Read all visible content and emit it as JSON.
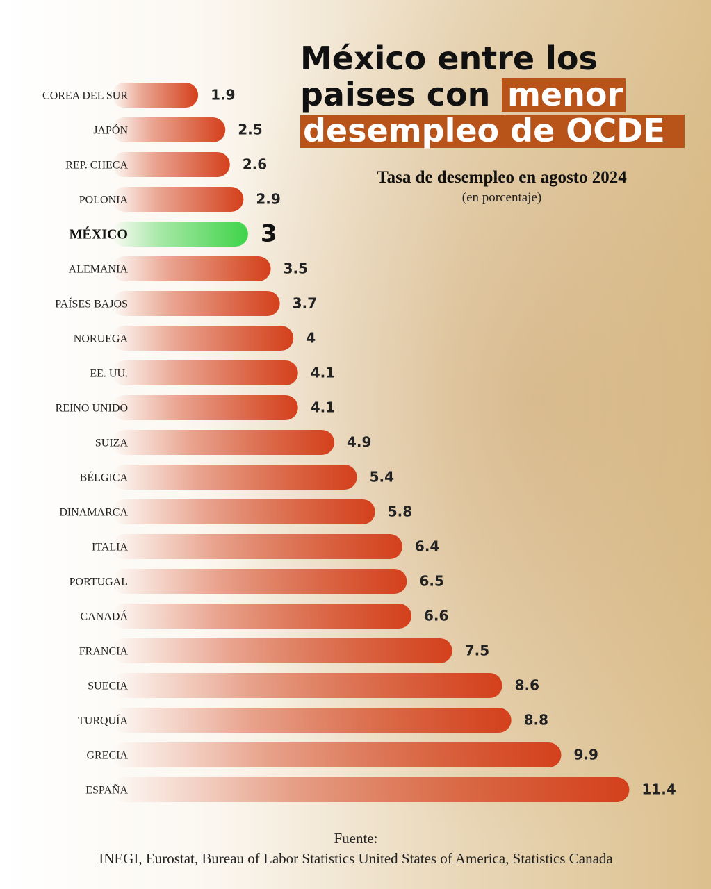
{
  "chart_data": {
    "type": "bar",
    "orientation": "horizontal",
    "title": [
      "México entre los",
      "paises con",
      "menor",
      "desempleo de OCDE"
    ],
    "subtitle": "Tasa de desempleo en agosto 2024",
    "unit_note": "(en porcentaje)",
    "source_label": "Fuente:",
    "source": "INEGI, Eurostat, Bureau of Labor Statistics United States of America, Statistics Canada",
    "categories": [
      "COREA DEL SUR",
      "JAPÓN",
      "REP. CHECA",
      "POLONIA",
      "MÉXICO",
      "ALEMANIA",
      "PAÍSES BAJOS",
      "NORUEGA",
      "EE. UU.",
      "REINO UNIDO",
      "SUIZA",
      "BÉLGICA",
      "DINAMARCA",
      "ITALIA",
      "PORTUGAL",
      "CANADÁ",
      "FRANCIA",
      "SUECIA",
      "TURQUÍA",
      "GRECIA",
      "ESPAÑA"
    ],
    "values": [
      1.9,
      2.5,
      2.6,
      2.9,
      3,
      3.5,
      3.7,
      4,
      4.1,
      4.1,
      4.9,
      5.4,
      5.8,
      6.4,
      6.5,
      6.6,
      7.5,
      8.6,
      8.8,
      9.9,
      11.4
    ],
    "color": "#d4401c",
    "colors": [
      "#d4401c",
      "#d4401c",
      "#d4401c",
      "#d4401c",
      "#3fd44a",
      "#d4401c",
      "#d4401c",
      "#d4401c",
      "#d4401c",
      "#d4401c",
      "#d4401c",
      "#d4401c",
      "#d4401c",
      "#d4401c",
      "#d4401c",
      "#d4401c",
      "#d4401c",
      "#d4401c",
      "#d4401c",
      "#d4401c",
      "#d4401c"
    ],
    "title_highlight_color": "#b8531a"
  }
}
